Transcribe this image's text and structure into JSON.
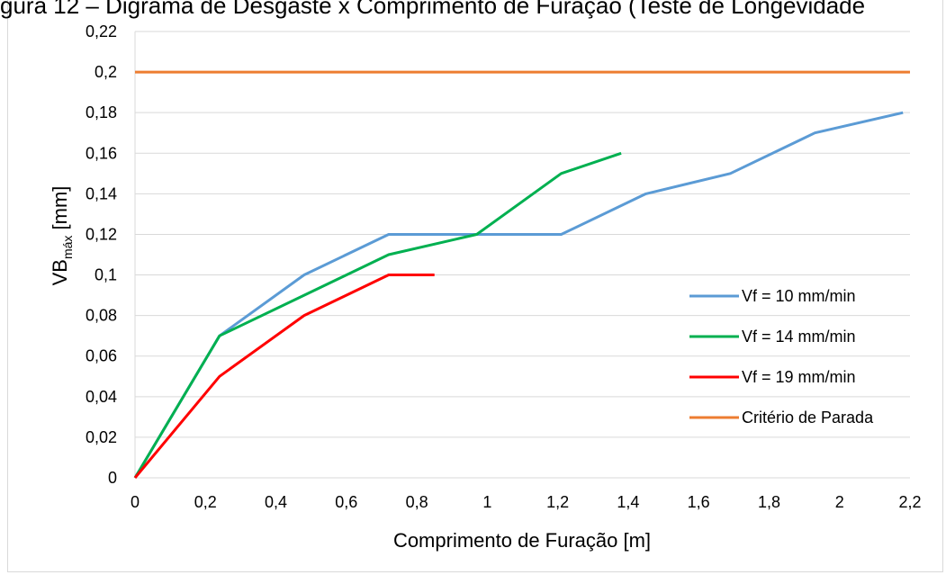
{
  "chart_data": {
    "type": "line",
    "title": "gura 12 – Digrama de Desgaste x Comprimento de Furação (Teste de Longevidade",
    "xlabel": "Comprimento de Furação [m]",
    "ylabel_main": "VB",
    "ylabel_sub": "máx",
    "ylabel_unit": " [mm]",
    "xlim": [
      0,
      2.2
    ],
    "ylim": [
      0,
      0.22
    ],
    "x_ticks": [
      "0",
      "0,2",
      "0,4",
      "0,6",
      "0,8",
      "1",
      "1,2",
      "1,4",
      "1,6",
      "1,8",
      "2",
      "2,2"
    ],
    "y_ticks": [
      "0",
      "0,02",
      "0,04",
      "0,06",
      "0,08",
      "0,1",
      "0,12",
      "0,14",
      "0,16",
      "0,18",
      "0,2",
      "0,22"
    ],
    "grid": "horizontal",
    "legend_position": "right",
    "series": [
      {
        "name": "Vf = 10 mm/min",
        "color": "#5b9bd5",
        "points": [
          [
            0,
            0
          ],
          [
            0.24,
            0.07
          ],
          [
            0.48,
            0.1
          ],
          [
            0.72,
            0.12
          ],
          [
            0.96,
            0.12
          ],
          [
            1.21,
            0.12
          ],
          [
            1.45,
            0.14
          ],
          [
            1.69,
            0.15
          ],
          [
            1.93,
            0.17
          ],
          [
            2.18,
            0.18
          ]
        ]
      },
      {
        "name": "Vf = 14 mm/min",
        "color": "#00b050",
        "points": [
          [
            0,
            0
          ],
          [
            0.24,
            0.07
          ],
          [
            0.48,
            0.09
          ],
          [
            0.72,
            0.11
          ],
          [
            0.97,
            0.12
          ],
          [
            1.21,
            0.15
          ],
          [
            1.38,
            0.16
          ]
        ]
      },
      {
        "name": "Vf = 19 mm/min",
        "color": "#ff0000",
        "points": [
          [
            0,
            0
          ],
          [
            0.24,
            0.05
          ],
          [
            0.48,
            0.08
          ],
          [
            0.72,
            0.1
          ],
          [
            0.85,
            0.1
          ]
        ]
      },
      {
        "name": "Critério de Parada",
        "color": "#ed7d31",
        "points": [
          [
            0,
            0.2
          ],
          [
            2.2,
            0.2
          ]
        ]
      }
    ]
  }
}
